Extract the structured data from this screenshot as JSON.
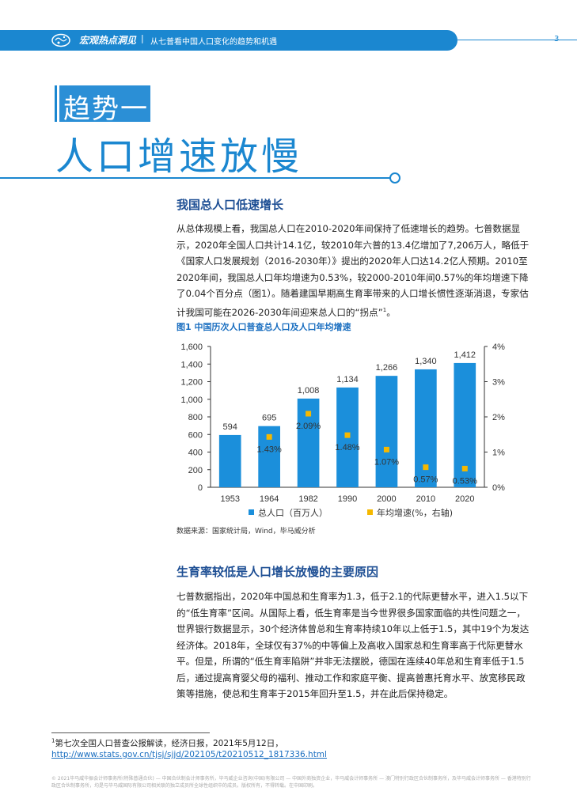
{
  "header": {
    "title": "宏观热点洞见",
    "separator": "|",
    "subtitle": "从七普看中国人口变化的趋势和机遇",
    "page_number": "3"
  },
  "section": {
    "label": "趋势一",
    "title": "人口增速放慢"
  },
  "block1": {
    "heading": "我国总人口低速增长",
    "paragraph": "从总体规模上看，我国总人口在2010-2020年间保持了低速增长的趋势。七普数据显示，2020年全国人口共计14.1亿，较2010年六普的13.4亿增加了7,206万人，略低于《国家人口发展规划（2016-2030年）》提出的2020年人口达14.2亿人预期。2010至2020年间，我国总人口年均增速为0.53%，较2000-2010年间0.57%的年均增速下降了0.04个百分点（图1）。随着建国早期高生育率带来的人口增长惯性逐渐消退，专家估计我国可能在2026-2030年间迎来总人口的“拐点”",
    "footnote_mark": "1",
    "paragraph_end": "。"
  },
  "figure": {
    "title": "图1  中国历次人口普查总人口及人口年均增速",
    "source": "数据来源：国家统计局，Wind，毕马威分析"
  },
  "chart_data": {
    "type": "bar",
    "categories": [
      "1953",
      "1964",
      "1982",
      "1990",
      "2000",
      "2010",
      "2020"
    ],
    "series": [
      {
        "name": "总人口（百万人）",
        "axis": "left",
        "kind": "bar",
        "color": "#1b8fdb",
        "values": [
          594,
          695,
          1008,
          1134,
          1266,
          1340,
          1412
        ],
        "labels": [
          "594",
          "695",
          "1,008",
          "1,134",
          "1,266",
          "1,340",
          "1,412"
        ]
      },
      {
        "name": "年均增速(%，右轴)",
        "axis": "right",
        "kind": "marker",
        "color": "#f5b800",
        "values": [
          null,
          1.43,
          2.09,
          1.48,
          1.07,
          0.57,
          0.53
        ],
        "labels": [
          "",
          "1.43%",
          "2.09%",
          "1.48%",
          "1.07%",
          "0.57%",
          "0.53%"
        ]
      }
    ],
    "y_left": {
      "min": 0,
      "max": 1600,
      "ticks": [
        "0",
        "200",
        "400",
        "600",
        "800",
        "1,000",
        "1,200",
        "1,400",
        "1,600"
      ]
    },
    "y_right": {
      "min": 0,
      "max": 4,
      "ticks": [
        "0%",
        "1%",
        "2%",
        "3%",
        "4%"
      ]
    },
    "legend_position": "bottom",
    "grid": false
  },
  "block2": {
    "heading": "生育率较低是人口增长放慢的主要原因",
    "paragraph": "七普数据指出，2020年中国总和生育率为1.3，低于2.1的代际更替水平，进入1.5以下的“低生育率”区间。从国际上看，低生育率是当今世界很多国家面临的共性问题之一，世界银行数据显示，30个经济体曾总和生育率持续10年以上低于1.5，其中19个为发达经济体。2018年，全球仅有37%的中等偏上及高收入国家总和生育率高于代际更替水平。但是，所谓的“低生育率陷阱”并非无法摆脱，德国在连续40年总和生育率低于1.5后，通过提高育婴父母的福利、推动工作和家庭平衡、提高普惠托育水平、放宽移民政策等措施，使总和生育率于2015年回升至1.5，并在此后保持稳定。"
  },
  "footnote": {
    "mark": "1",
    "text": "第七次全国人口普查公报解读，经济日报，2021年5月12日，",
    "url": "http://www.stats.gov.cn/tjsj/sjjd/202105/t20210512_1817336.html"
  },
  "footer": {
    "text": "© 2021毕马威华振会计师事务所(特殊普通合伙) — 中国合伙制会计师事务所，毕马威企业咨询(中国)有限公司 — 中国外商独资企业，毕马威会计师事务所 — 澳门特别行政区合伙制事务所，及毕马威会计师事务所 — 香港特别行政区合伙制事务所，均是与毕马威国际有限公司相关联的独立成员所全球性组织中的成员。版权所有，不得转载。在中国印刷。"
  }
}
